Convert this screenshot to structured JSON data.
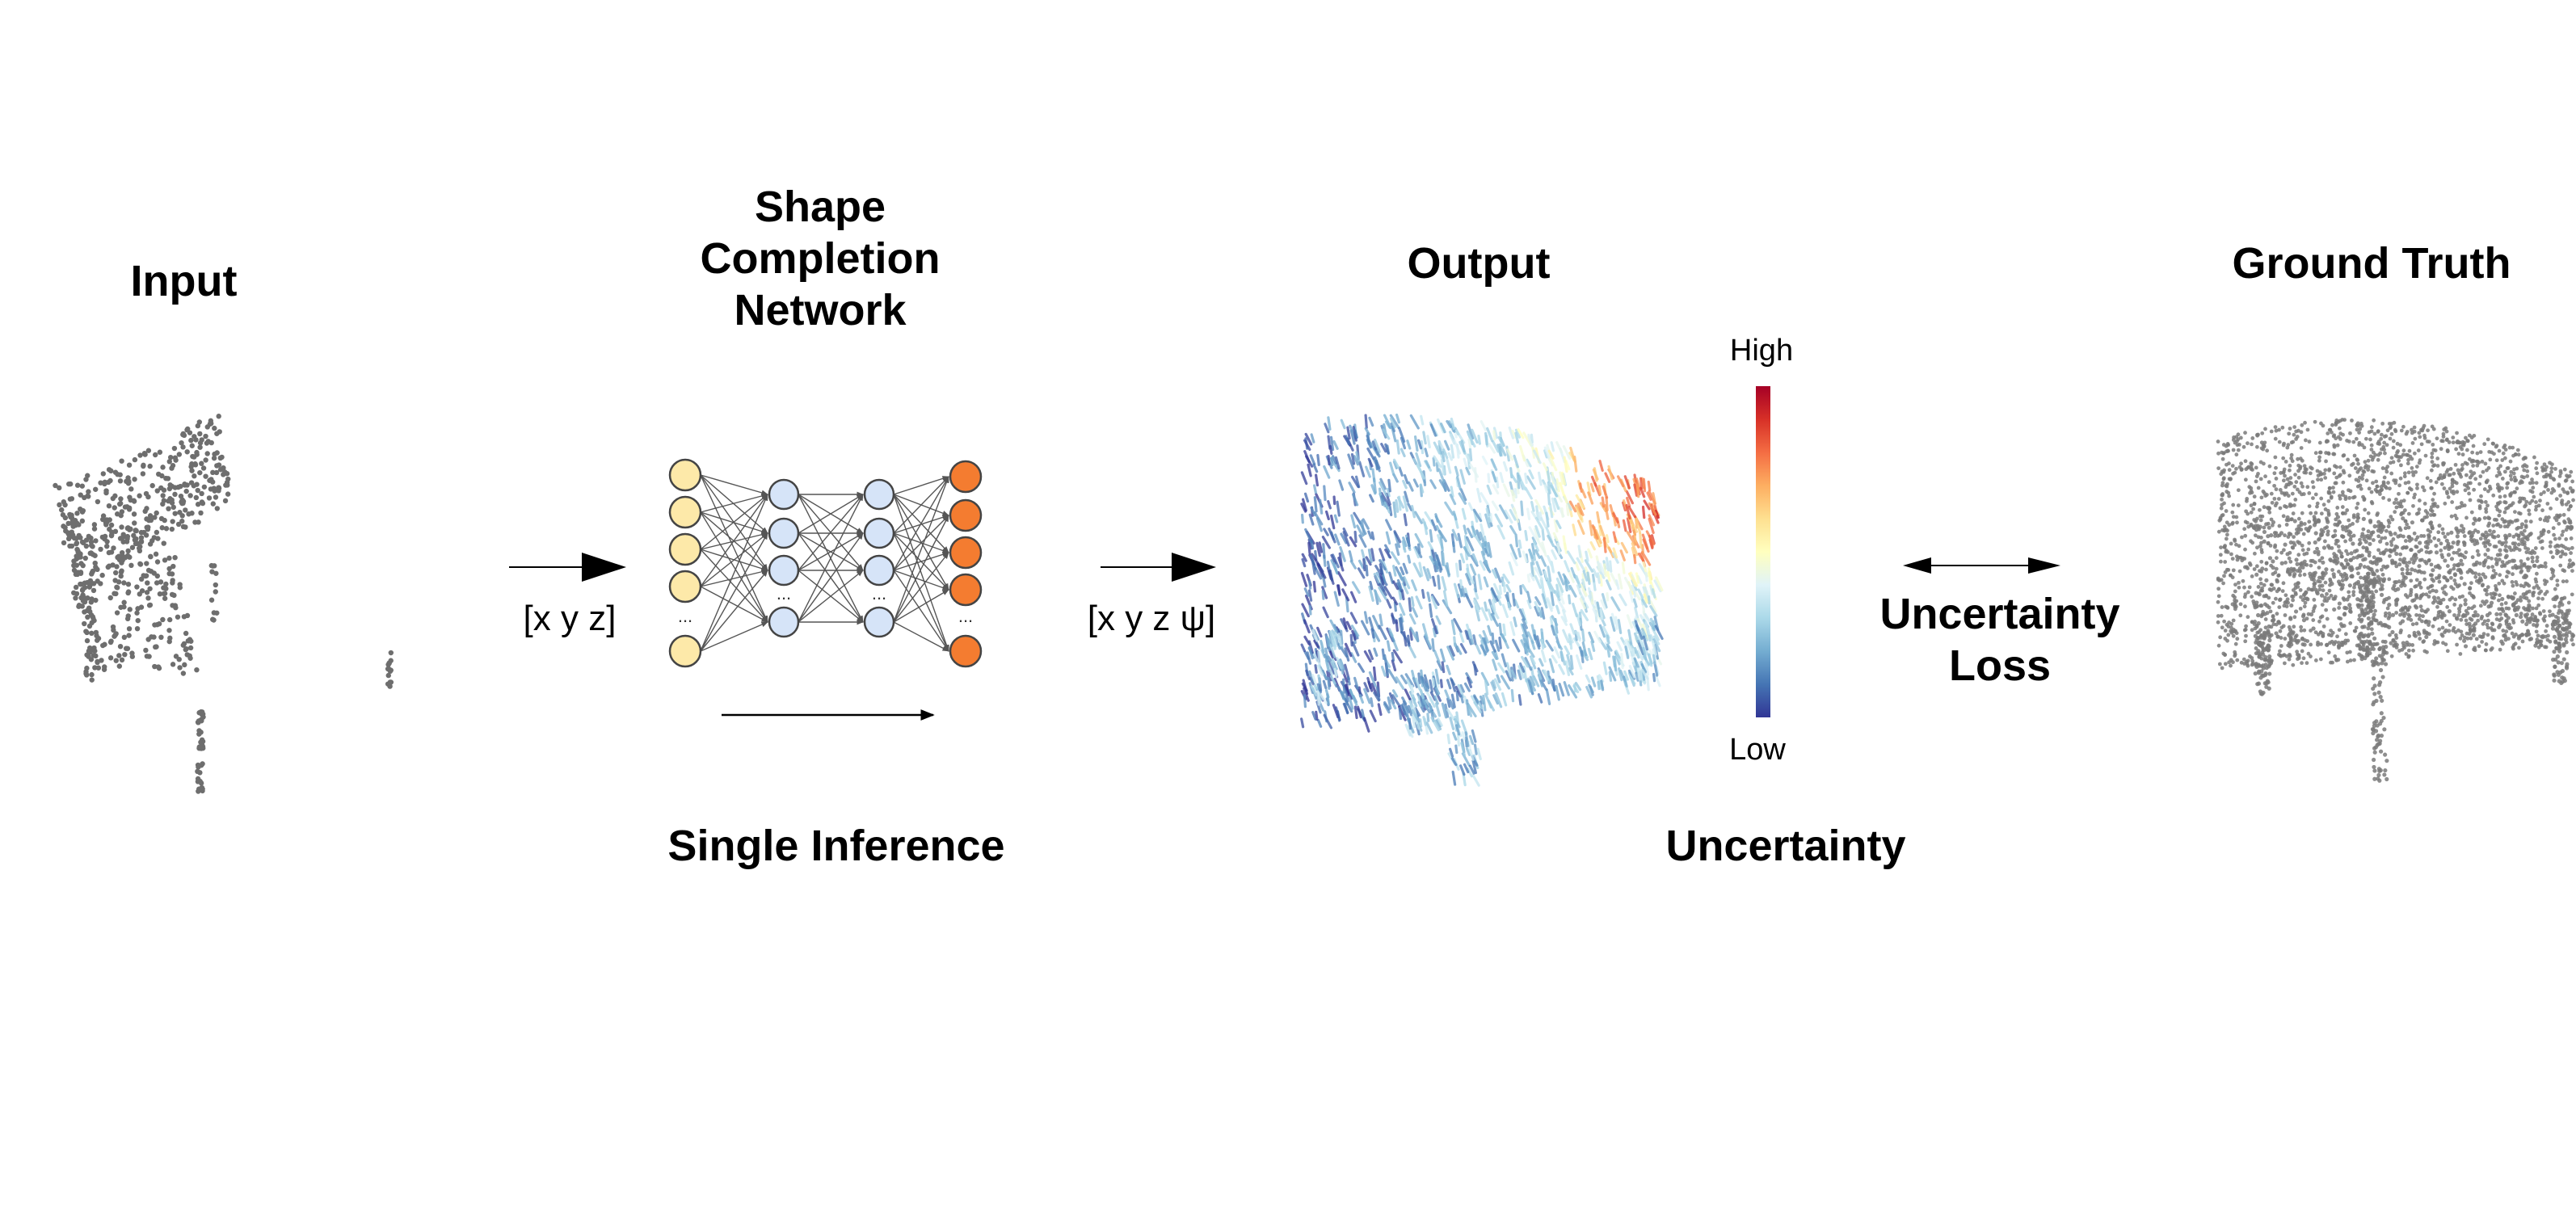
{
  "labels": {
    "input": "Input",
    "network_line1": "Shape",
    "network_line2": "Completion",
    "network_line3": "Network",
    "output": "Output",
    "ground_truth": "Ground Truth",
    "input_vector": "[x y z]",
    "output_vector": "[x y z ψ]",
    "single_inference": "Single Inference",
    "uncertainty": "Uncertainty",
    "loss_line1": "Uncertainty",
    "loss_line2": "Loss",
    "colorbar_high": "High",
    "colorbar_low": "Low",
    "ellipsis": "..."
  },
  "colors": {
    "input_node": "#fde9a9",
    "hidden_node": "#d6e4f8",
    "output_node": "#f47c30",
    "node_stroke": "#444444",
    "edge": "#555555",
    "point_gray": "#6e6e6e",
    "colorbar": [
      "#313695",
      "#4575b4",
      "#74add1",
      "#abd9e9",
      "#e0f3f8",
      "#ffffbf",
      "#fee090",
      "#fdae61",
      "#f46d43",
      "#d73027",
      "#a50026"
    ]
  },
  "icons": {
    "input_cloud": "partial-chair-point-cloud",
    "output_cloud": "uncertainty-colored-chair-point-cloud",
    "ground_truth_cloud": "complete-chair-point-cloud",
    "network": "neural-network-diagram"
  }
}
